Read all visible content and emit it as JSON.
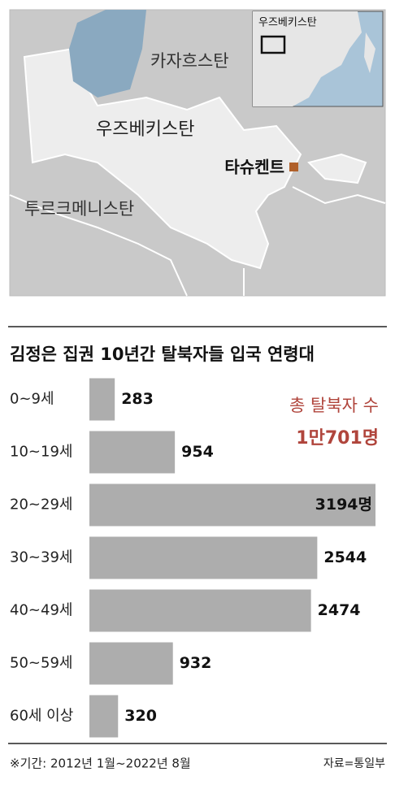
{
  "map": {
    "labels": [
      "카자흐스탄",
      "우즈베키스탄",
      "타슈켄트",
      "투르크메니스탄"
    ],
    "inset_label": "우즈베키스탄"
  },
  "chart_data": {
    "type": "bar",
    "orientation": "horizontal",
    "title": "김정은 집권 10년간 탈북자들 입국 연령대",
    "categories": [
      "0~9세",
      "10~19세",
      "20~29세",
      "30~39세",
      "40~49세",
      "50~59세",
      "60세 이상"
    ],
    "values": [
      283,
      954,
      3194,
      2544,
      2474,
      932,
      320
    ],
    "value_labels": [
      "283",
      "954",
      "3194명",
      "2544",
      "2474",
      "932",
      "320"
    ],
    "color": "#adadad",
    "annotations": [
      "총 탈북자 수",
      "1만701명"
    ],
    "note": "※기간: 2012년 1월~2022년 8월",
    "source": "자료=통일부"
  }
}
